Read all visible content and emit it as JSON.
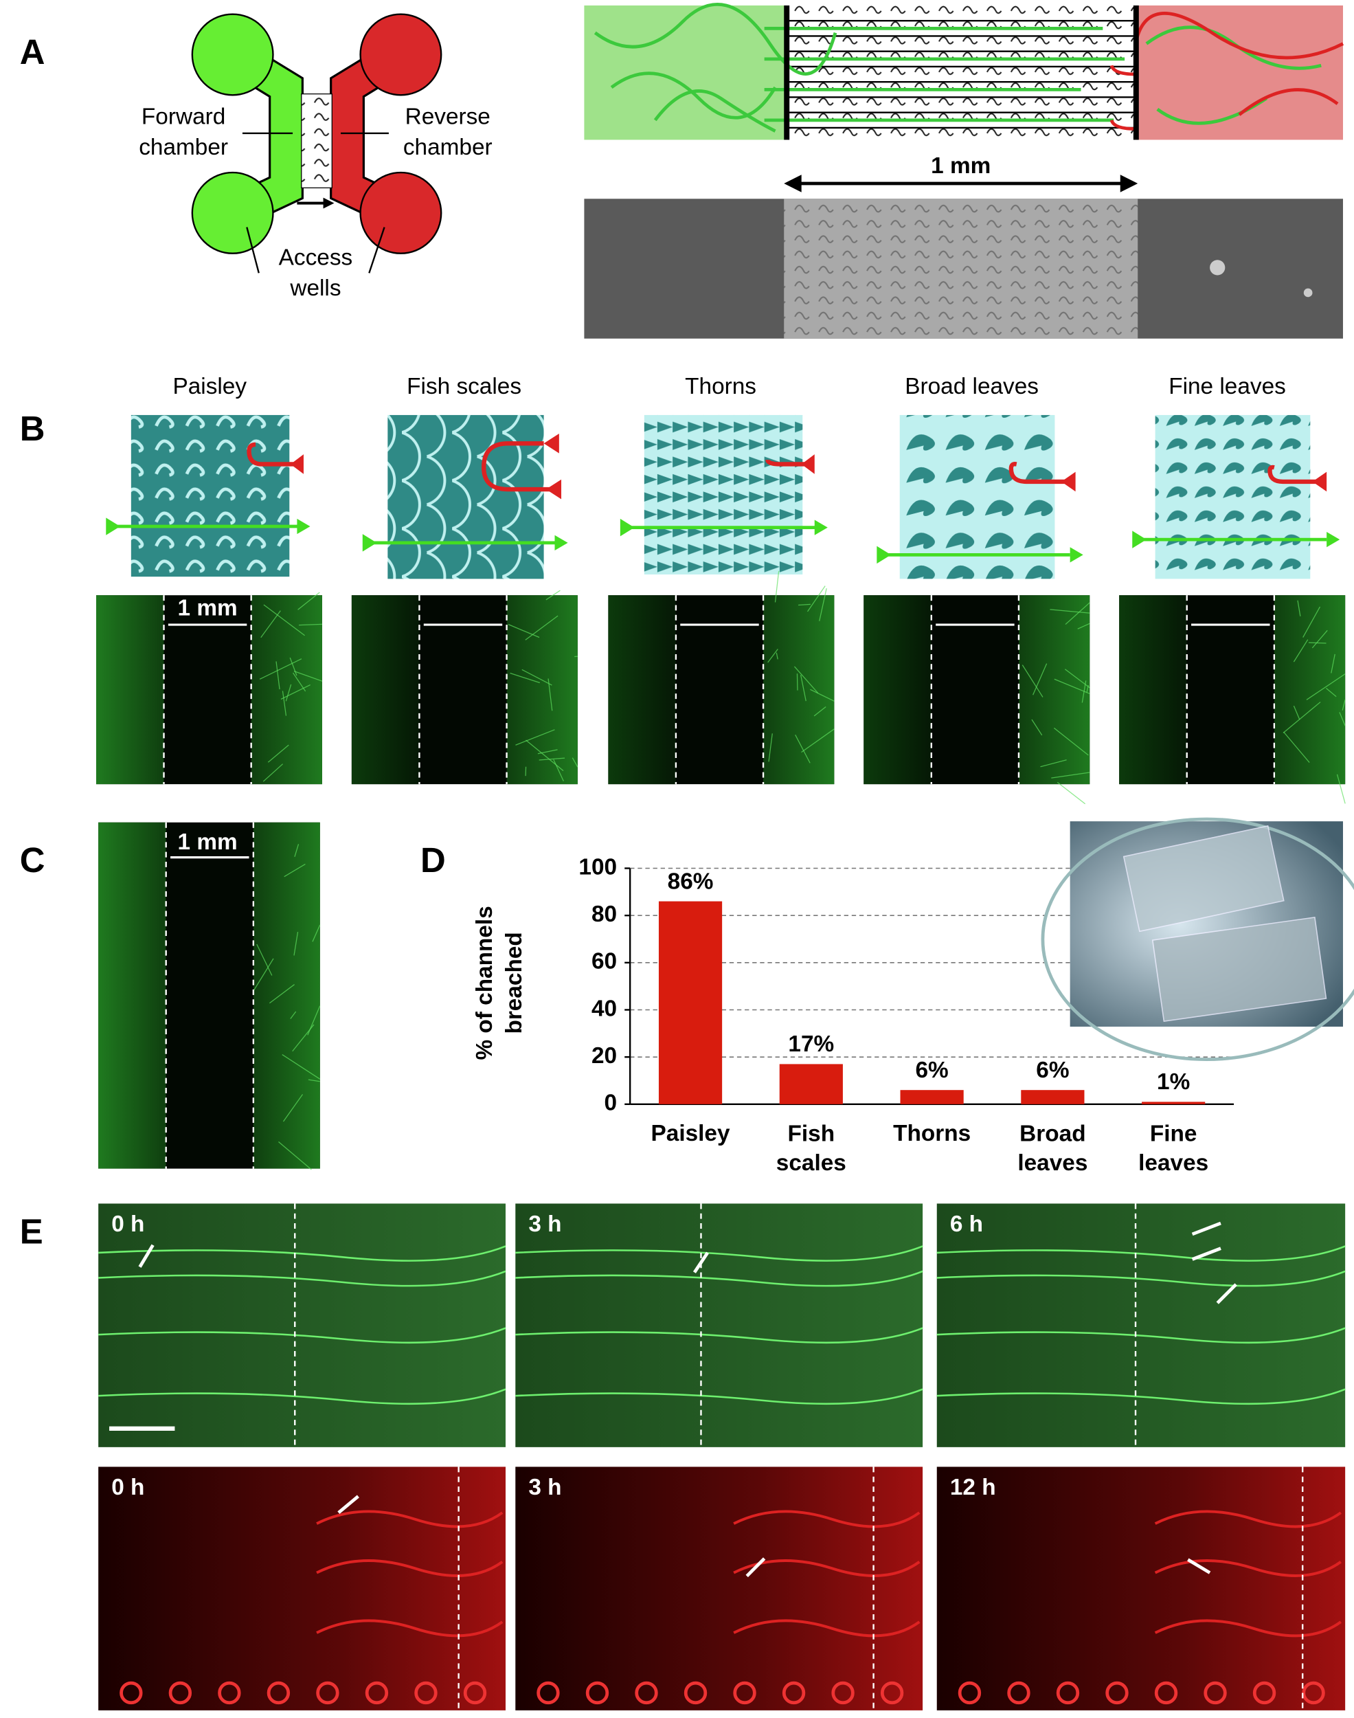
{
  "panel_labels": [
    "A",
    "B",
    "C",
    "D",
    "E"
  ],
  "panel_a": {
    "forward_chamber": [
      "Forward",
      "chamber"
    ],
    "reverse_chamber": [
      "Reverse",
      "chamber"
    ],
    "access_wells": [
      "Access",
      "wells"
    ],
    "scale": "1 mm"
  },
  "panel_b": {
    "patterns": [
      "Paisley",
      "Fish scales",
      "Thorns",
      "Broad leaves",
      "Fine leaves"
    ],
    "scale": "1 mm"
  },
  "panel_c": {
    "scale": "1 mm"
  },
  "chart_data": {
    "type": "bar",
    "y_label": [
      "% of channels",
      "breached"
    ],
    "categories": [
      "Paisley",
      "Fish scales",
      "Thorns",
      "Broad leaves",
      "Fine leaves"
    ],
    "values": [
      86,
      17,
      6,
      6,
      1
    ],
    "value_labels": [
      "86%",
      "17%",
      "6%",
      "6%",
      "1%"
    ],
    "color": "#d81c0e",
    "ylim": [
      0,
      100
    ],
    "yticks": [
      0,
      20,
      40,
      60,
      80,
      100
    ],
    "grid": true
  },
  "panel_e": {
    "green_times": [
      "0 h",
      "3 h",
      "6 h"
    ],
    "red_times": [
      "0 h",
      "3 h",
      "12 h"
    ]
  }
}
